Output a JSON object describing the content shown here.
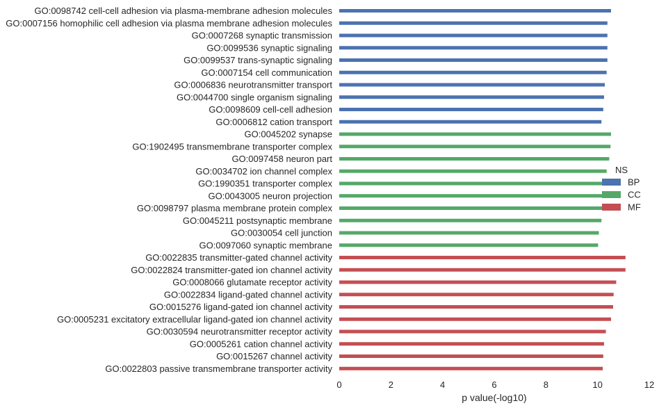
{
  "chart_data": {
    "type": "bar",
    "orientation": "horizontal",
    "xlabel": "p value(-log10)",
    "ylabel": "",
    "xlim": [
      0,
      12
    ],
    "xticks": [
      0,
      2,
      4,
      6,
      8,
      10,
      12
    ],
    "grid": false,
    "legend": {
      "title": "NS",
      "placement": "right",
      "entries": [
        {
          "name": "BP",
          "color": "#4c72b0"
        },
        {
          "name": "CC",
          "color": "#55a868"
        },
        {
          "name": "MF",
          "color": "#c44e52"
        }
      ]
    },
    "categories": [
      "GO:0098742 cell-cell adhesion via plasma-membrane adhesion molecules",
      "GO:0007156 homophilic cell adhesion via plasma membrane adhesion molecules",
      "GO:0007268 synaptic transmission",
      "GO:0099536 synaptic signaling",
      "GO:0099537 trans-synaptic signaling",
      "GO:0007154 cell communication",
      "GO:0006836 neurotransmitter transport",
      "GO:0044700 single organism signaling",
      "GO:0098609 cell-cell adhesion",
      "GO:0006812 cation transport",
      "GO:0045202 synapse",
      "GO:1902495 transmembrane transporter complex",
      "GO:0097458 neuron part",
      "GO:0034702 ion channel complex",
      "GO:1990351 transporter complex",
      "GO:0043005 neuron projection",
      "GO:0098797 plasma membrane protein complex",
      "GO:0045211 postsynaptic membrane",
      "GO:0030054 cell junction",
      "GO:0097060 synaptic membrane",
      "GO:0022835 transmitter-gated channel activity",
      "GO:0022824 transmitter-gated ion channel activity",
      "GO:0008066 glutamate receptor activity",
      "GO:0022834 ligand-gated channel activity",
      "GO:0015276 ligand-gated ion channel activity",
      "GO:0005231 excitatory extracellular ligand-gated ion channel activity",
      "GO:0030594 neurotransmitter receptor activity",
      "GO:0005261 cation channel activity",
      "GO:0015267 channel activity",
      "GO:0022803 passive transmembrane transporter activity"
    ],
    "values": [
      10.52,
      10.38,
      10.38,
      10.38,
      10.38,
      10.35,
      10.28,
      10.25,
      10.22,
      10.15,
      10.52,
      10.5,
      10.45,
      10.35,
      10.3,
      10.25,
      10.22,
      10.15,
      10.05,
      10.02,
      11.08,
      11.08,
      10.72,
      10.62,
      10.6,
      10.52,
      10.32,
      10.25,
      10.22,
      10.2
    ],
    "groups": [
      "BP",
      "BP",
      "BP",
      "BP",
      "BP",
      "BP",
      "BP",
      "BP",
      "BP",
      "BP",
      "CC",
      "CC",
      "CC",
      "CC",
      "CC",
      "CC",
      "CC",
      "CC",
      "CC",
      "CC",
      "MF",
      "MF",
      "MF",
      "MF",
      "MF",
      "MF",
      "MF",
      "MF",
      "MF",
      "MF"
    ]
  }
}
